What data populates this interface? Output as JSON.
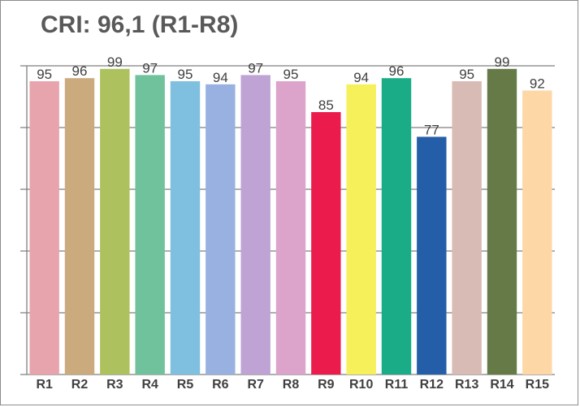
{
  "chart_data": {
    "type": "bar",
    "title": "CRI: 96,1 (R1-R8)",
    "xlabel": "",
    "ylabel": "",
    "categories": [
      "R1",
      "R2",
      "R3",
      "R4",
      "R5",
      "R6",
      "R7",
      "R8",
      "R9",
      "R10",
      "R11",
      "R12",
      "R13",
      "R14",
      "R15"
    ],
    "values": [
      95,
      96,
      99,
      97,
      95,
      94,
      97,
      95,
      85,
      94,
      96,
      77,
      95,
      99,
      92
    ],
    "colors": [
      "#e8a4ad",
      "#cbaa7e",
      "#adc25e",
      "#6fc29c",
      "#7fc0e0",
      "#98b1e0",
      "#bea3d4",
      "#dca4cb",
      "#eb1c4c",
      "#f6f05a",
      "#1aab87",
      "#255ea8",
      "#d8bbb4",
      "#667a48",
      "#fdd7a6"
    ],
    "ylim": [
      0,
      100
    ],
    "ytick_count": 5,
    "grid": true,
    "legend": "none"
  }
}
